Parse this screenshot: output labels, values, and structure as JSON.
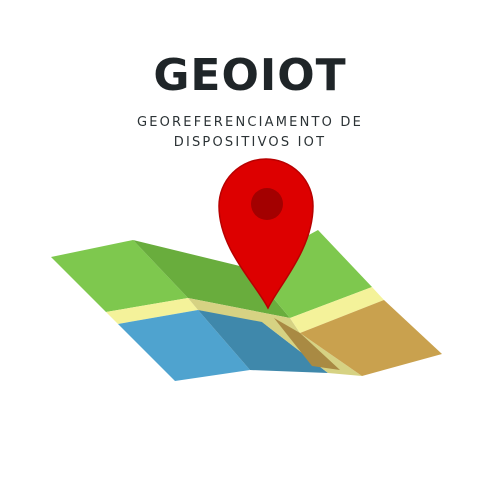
{
  "logo": {
    "title": "GEOIOT",
    "subtitle": "GEOREFERENCIAMENTO DE DISPOSITIVOS IOT",
    "icons": [
      "folded-map-icon",
      "map-pin-icon"
    ],
    "colors": {
      "title_text": "#1f2528",
      "map_green": "#7ec84e",
      "map_blue": "#4fa3cf",
      "map_road": "#f4f29a",
      "map_land": "#c9a14e",
      "pin_red": "#dd0000",
      "pin_dot": "#a30000"
    }
  }
}
